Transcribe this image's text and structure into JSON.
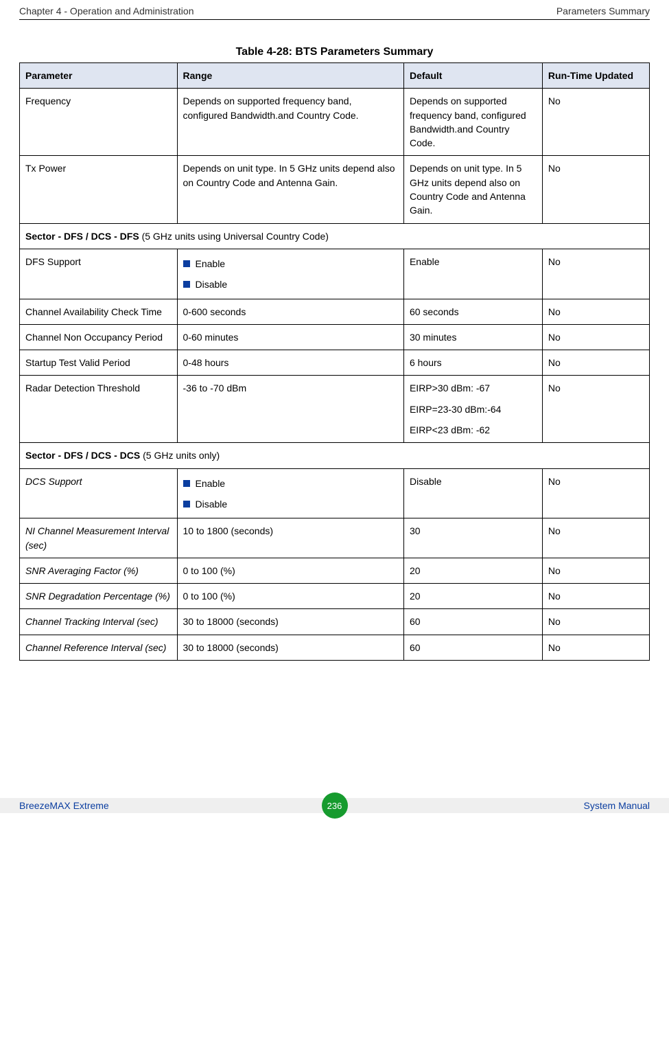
{
  "header": {
    "left": "Chapter 4 - Operation and Administration",
    "right": "Parameters Summary"
  },
  "table": {
    "caption": "Table 4-28: BTS Parameters Summary",
    "columns": {
      "c1": "Parameter",
      "c2": "Range",
      "c3": "Default",
      "c4": "Run-Time Updated"
    },
    "colors": {
      "header_bg": "#dfe5f1",
      "bullet": "#0b3ea0",
      "border": "#000000"
    },
    "col_widths_pct": [
      25,
      36,
      22,
      17
    ]
  },
  "rows": {
    "frequency": {
      "param": "Frequency",
      "range": "Depends on supported frequency band, configured Bandwidth.and Country Code.",
      "default": "Depends on supported frequency band, configured Bandwidth.and Country Code.",
      "rt": "No"
    },
    "txpower": {
      "param": "Tx Power",
      "range": "Depends on unit type. In 5 GHz units depend also on Country Code and Antenna Gain.",
      "default": "Depends on unit type. In 5 GHz units depend also on Country Code and Antenna Gain.",
      "rt": "No"
    },
    "section_dfs": {
      "title": "Sector - DFS / DCS - DFS",
      "note": "(5 GHz units using Universal Country Code)"
    },
    "dfs_support": {
      "param": "DFS Support",
      "opt1": "Enable",
      "opt2": "Disable",
      "default": "Enable",
      "rt": "No"
    },
    "cact": {
      "param": "Channel Availability Check Time",
      "range": "0-600 seconds",
      "default": "60 seconds",
      "rt": "No"
    },
    "cnop": {
      "param": "Channel Non Occupancy Period",
      "range": "0-60 minutes",
      "default": "30 minutes",
      "rt": "No"
    },
    "stvp": {
      "param": "Startup Test Valid Period",
      "range": "0-48 hours",
      "default": "6 hours",
      "rt": "No"
    },
    "rdt": {
      "param": "Radar Detection Threshold",
      "range": "-36 to -70 dBm",
      "d1": "EIRP>30 dBm: -67",
      "d2": "EIRP=23-30 dBm:-64",
      "d3": "EIRP<23 dBm: -62",
      "rt": "No"
    },
    "section_dcs": {
      "title": "Sector - DFS / DCS - DCS",
      "note": "(5 GHz units only)"
    },
    "dcs_support": {
      "param": "DCS Support",
      "opt1": "Enable",
      "opt2": "Disable",
      "default": "Disable",
      "rt": "No"
    },
    "nicmi": {
      "param": "NI Channel Measurement Interval (sec)",
      "range": "10 to 1800 (seconds)",
      "default": "30",
      "rt": "No"
    },
    "snraf": {
      "param": "SNR Averaging Factor (%)",
      "range": "0 to 100 (%)",
      "default": "20",
      "rt": "No"
    },
    "snrdp": {
      "param": "SNR Degradation Percentage (%)",
      "range": "0 to 100 (%)",
      "default": "20",
      "rt": "No"
    },
    "cti": {
      "param": "Channel Tracking Interval (sec)",
      "range": "30 to 18000 (seconds)",
      "default": "60",
      "rt": "No"
    },
    "cri": {
      "param": "Channel Reference Interval (sec)",
      "range": "30 to 18000 (seconds)",
      "default": "60",
      "rt": "No"
    }
  },
  "footer": {
    "left": "BreezeMAX Extreme",
    "page": "236",
    "right": "System Manual",
    "colors": {
      "bar_bg": "#efefef",
      "text": "#0b3ea0",
      "pill_bg": "#169b2e",
      "pill_text": "#ffffff"
    }
  }
}
